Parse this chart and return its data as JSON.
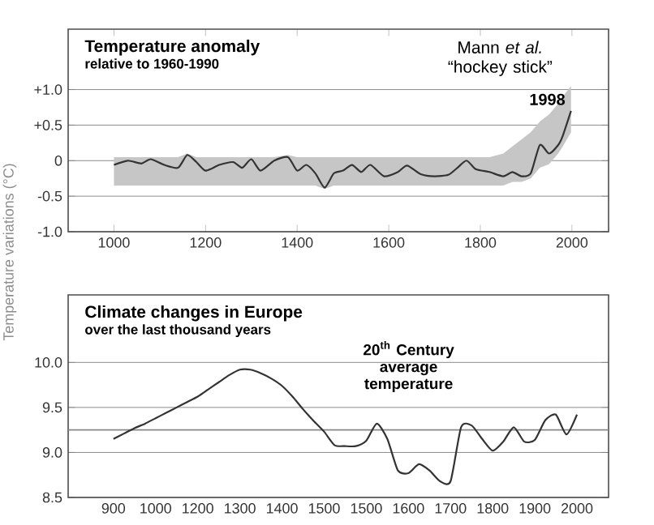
{
  "chart_data": [
    {
      "type": "line",
      "title": "Temperature anomaly",
      "subtitle": "relative to 1960-1990",
      "ylabel": "Temperature variations (°C)",
      "annotations": [
        "Mann *et al.* “hockey stick”",
        {
          "text": "1998",
          "x": 1998,
          "y": 0.7
        }
      ],
      "xlim": [
        900,
        2080
      ],
      "ylim": [
        -1.0,
        1.85
      ],
      "xticks": [
        1000,
        1200,
        1400,
        1600,
        1800,
        2000
      ],
      "yticks": [
        {
          "value": -1.0,
          "label": "-1.0"
        },
        {
          "value": -0.5,
          "label": "-0.5"
        },
        {
          "value": 0,
          "label": "0"
        },
        {
          "value": 0.5,
          "label": "+0.5"
        },
        {
          "value": 1.0,
          "label": "+1.0"
        }
      ],
      "grid": "y",
      "series": [
        {
          "color": "#333333",
          "x": [
            1000,
            1030,
            1060,
            1080,
            1110,
            1140,
            1160,
            1180,
            1200,
            1230,
            1260,
            1280,
            1300,
            1320,
            1350,
            1380,
            1400,
            1420,
            1440,
            1460,
            1480,
            1500,
            1520,
            1540,
            1560,
            1590,
            1620,
            1640,
            1670,
            1700,
            1730,
            1750,
            1770,
            1790,
            1820,
            1850,
            1870,
            1890,
            1910,
            1930,
            1950,
            1970,
            1980,
            1998
          ],
          "values": [
            -0.06,
            0,
            -0.04,
            0.02,
            -0.06,
            -0.1,
            0.08,
            -0.02,
            -0.14,
            -0.06,
            -0.02,
            -0.1,
            0.02,
            -0.14,
            0,
            0.05,
            -0.14,
            -0.06,
            -0.18,
            -0.38,
            -0.18,
            -0.14,
            -0.06,
            -0.16,
            -0.06,
            -0.22,
            -0.16,
            -0.07,
            -0.19,
            -0.22,
            -0.2,
            -0.1,
            0,
            -0.12,
            -0.16,
            -0.22,
            -0.16,
            -0.22,
            -0.18,
            0.22,
            0.1,
            0.22,
            0.35,
            0.7
          ],
          "lower": [
            -0.35,
            -0.35,
            -0.35,
            -0.35,
            -0.35,
            -0.35,
            -0.35,
            -0.35,
            -0.35,
            -0.35,
            -0.35,
            -0.35,
            -0.35,
            -0.35,
            -0.35,
            -0.35,
            -0.35,
            -0.35,
            -0.35,
            -0.4,
            -0.35,
            -0.35,
            -0.35,
            -0.35,
            -0.35,
            -0.35,
            -0.35,
            -0.35,
            -0.35,
            -0.35,
            -0.35,
            -0.35,
            -0.35,
            -0.35,
            -0.35,
            -0.35,
            -0.3,
            -0.3,
            -0.25,
            -0.1,
            -0.05,
            0.1,
            0.2,
            0.4
          ],
          "upper": [
            0.05,
            0.05,
            0.05,
            0.05,
            0.05,
            0.05,
            0.1,
            0.05,
            0.05,
            0.05,
            0.05,
            0.05,
            0.05,
            0.05,
            0.05,
            0.08,
            0.05,
            0.05,
            0.05,
            0.05,
            0.05,
            0.05,
            0.05,
            0.05,
            0.05,
            0.05,
            0.05,
            0.05,
            0.05,
            0.05,
            0.05,
            0.05,
            0.05,
            0.05,
            0.05,
            0.1,
            0.2,
            0.3,
            0.4,
            0.55,
            0.65,
            0.8,
            0.9,
            1.05
          ]
        }
      ]
    },
    {
      "type": "line",
      "title": "Climate changes in Europe",
      "subtitle": "over the last thousand years",
      "categories": [
        "900",
        null,
        null,
        null,
        "1000",
        null,
        null,
        null,
        "1200",
        null,
        null,
        null,
        "1300",
        null,
        null,
        null,
        "1400",
        null,
        null,
        null,
        "1500",
        null,
        null,
        null,
        "1500",
        null,
        null,
        null,
        "1600",
        null,
        null,
        null,
        "1700",
        null,
        null,
        null,
        "1800",
        null,
        null,
        null,
        "1900",
        null,
        null,
        null,
        "2000"
      ],
      "ylim": [
        8.5,
        10.75
      ],
      "yticks": [
        {
          "value": 8.5,
          "label": "8.5"
        },
        {
          "value": 9.0,
          "label": "9.0"
        },
        {
          "value": 9.5,
          "label": "9.5"
        },
        {
          "value": 10.0,
          "label": "10.0"
        }
      ],
      "grid": "y",
      "ref_lines": [
        {
          "axis": "y",
          "value": 9.25,
          "label": "20$^{th}$ Century average temperature",
          "color": "#888888"
        }
      ],
      "series": [
        {
          "color": "#333333",
          "values": [
            9.15,
            9.21,
            9.27,
            9.32,
            9.38,
            9.44,
            9.5,
            9.56,
            9.62,
            9.7,
            9.78,
            9.86,
            9.92,
            9.92,
            9.88,
            9.82,
            9.74,
            9.62,
            9.48,
            9.35,
            9.23,
            9.08,
            9.07,
            9.07,
            9.13,
            9.32,
            9.15,
            8.8,
            8.77,
            8.87,
            8.8,
            8.68,
            8.68,
            9.28,
            9.3,
            9.15,
            9.02,
            9.12,
            9.28,
            9.12,
            9.14,
            9.36,
            9.42,
            9.2,
            9.42
          ]
        }
      ]
    }
  ]
}
